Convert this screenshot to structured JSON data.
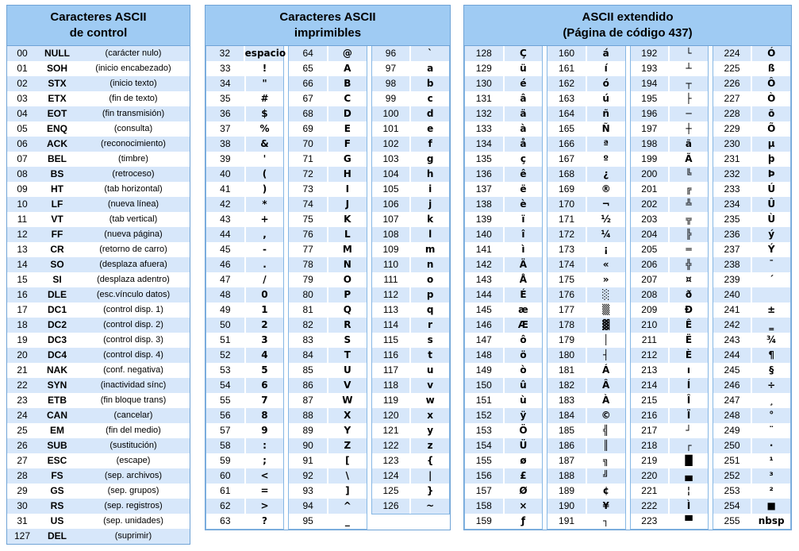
{
  "colors": {
    "header_bg": "#9FCBF3",
    "row_alt": "#D7E7FA",
    "border": "#6FA3D6",
    "subborder": "#86B7E4"
  },
  "panels": {
    "control": {
      "title_line1": "Caracteres ASCII",
      "title_line2": "de control",
      "rows": [
        {
          "d": "00",
          "c": "NULL",
          "t": "(carácter nulo)"
        },
        {
          "d": "01",
          "c": "SOH",
          "t": "(inicio encabezado)"
        },
        {
          "d": "02",
          "c": "STX",
          "t": "(inicio texto)"
        },
        {
          "d": "03",
          "c": "ETX",
          "t": "(fin de texto)"
        },
        {
          "d": "04",
          "c": "EOT",
          "t": "(fin transmisión)"
        },
        {
          "d": "05",
          "c": "ENQ",
          "t": "(consulta)"
        },
        {
          "d": "06",
          "c": "ACK",
          "t": "(reconocimiento)"
        },
        {
          "d": "07",
          "c": "BEL",
          "t": "(timbre)"
        },
        {
          "d": "08",
          "c": "BS",
          "t": "(retroceso)"
        },
        {
          "d": "09",
          "c": "HT",
          "t": "(tab horizontal)"
        },
        {
          "d": "10",
          "c": "LF",
          "t": "(nueva línea)"
        },
        {
          "d": "11",
          "c": "VT",
          "t": "(tab vertical)"
        },
        {
          "d": "12",
          "c": "FF",
          "t": "(nueva página)"
        },
        {
          "d": "13",
          "c": "CR",
          "t": "(retorno de carro)"
        },
        {
          "d": "14",
          "c": "SO",
          "t": "(desplaza afuera)"
        },
        {
          "d": "15",
          "c": "SI",
          "t": "(desplaza adentro)"
        },
        {
          "d": "16",
          "c": "DLE",
          "t": "(esc.vínculo datos)"
        },
        {
          "d": "17",
          "c": "DC1",
          "t": "(control disp. 1)"
        },
        {
          "d": "18",
          "c": "DC2",
          "t": "(control disp. 2)"
        },
        {
          "d": "19",
          "c": "DC3",
          "t": "(control disp. 3)"
        },
        {
          "d": "20",
          "c": "DC4",
          "t": "(control disp. 4)"
        },
        {
          "d": "21",
          "c": "NAK",
          "t": "(conf. negativa)"
        },
        {
          "d": "22",
          "c": "SYN",
          "t": "(inactividad sínc)"
        },
        {
          "d": "23",
          "c": "ETB",
          "t": "(fin bloque trans)"
        },
        {
          "d": "24",
          "c": "CAN",
          "t": "(cancelar)"
        },
        {
          "d": "25",
          "c": "EM",
          "t": "(fin del medio)"
        },
        {
          "d": "26",
          "c": "SUB",
          "t": "(sustitución)"
        },
        {
          "d": "27",
          "c": "ESC",
          "t": "(escape)"
        },
        {
          "d": "28",
          "c": "FS",
          "t": "(sep. archivos)"
        },
        {
          "d": "29",
          "c": "GS",
          "t": "(sep. grupos)"
        },
        {
          "d": "30",
          "c": "RS",
          "t": "(sep. registros)"
        },
        {
          "d": "31",
          "c": "US",
          "t": "(sep. unidades)"
        },
        {
          "d": "127",
          "c": "DEL",
          "t": "(suprimir)"
        }
      ]
    },
    "printable": {
      "title_line1": "Caracteres ASCII",
      "title_line2": "imprimibles",
      "columns": [
        [
          {
            "d": "32",
            "c": "espacio"
          },
          {
            "d": "33",
            "c": "!"
          },
          {
            "d": "34",
            "c": "\""
          },
          {
            "d": "35",
            "c": "#"
          },
          {
            "d": "36",
            "c": "$"
          },
          {
            "d": "37",
            "c": "%"
          },
          {
            "d": "38",
            "c": "&"
          },
          {
            "d": "39",
            "c": "'"
          },
          {
            "d": "40",
            "c": "("
          },
          {
            "d": "41",
            "c": ")"
          },
          {
            "d": "42",
            "c": "*"
          },
          {
            "d": "43",
            "c": "+"
          },
          {
            "d": "44",
            "c": ","
          },
          {
            "d": "45",
            "c": "-"
          },
          {
            "d": "46",
            "c": "."
          },
          {
            "d": "47",
            "c": "/"
          },
          {
            "d": "48",
            "c": "0"
          },
          {
            "d": "49",
            "c": "1"
          },
          {
            "d": "50",
            "c": "2"
          },
          {
            "d": "51",
            "c": "3"
          },
          {
            "d": "52",
            "c": "4"
          },
          {
            "d": "53",
            "c": "5"
          },
          {
            "d": "54",
            "c": "6"
          },
          {
            "d": "55",
            "c": "7"
          },
          {
            "d": "56",
            "c": "8"
          },
          {
            "d": "57",
            "c": "9"
          },
          {
            "d": "58",
            "c": ":"
          },
          {
            "d": "59",
            "c": ";"
          },
          {
            "d": "60",
            "c": "<"
          },
          {
            "d": "61",
            "c": "="
          },
          {
            "d": "62",
            "c": ">"
          },
          {
            "d": "63",
            "c": "?"
          }
        ],
        [
          {
            "d": "64",
            "c": "@"
          },
          {
            "d": "65",
            "c": "A"
          },
          {
            "d": "66",
            "c": "B"
          },
          {
            "d": "67",
            "c": "C"
          },
          {
            "d": "68",
            "c": "D"
          },
          {
            "d": "69",
            "c": "E"
          },
          {
            "d": "70",
            "c": "F"
          },
          {
            "d": "71",
            "c": "G"
          },
          {
            "d": "72",
            "c": "H"
          },
          {
            "d": "73",
            "c": "I"
          },
          {
            "d": "74",
            "c": "J"
          },
          {
            "d": "75",
            "c": "K"
          },
          {
            "d": "76",
            "c": "L"
          },
          {
            "d": "77",
            "c": "M"
          },
          {
            "d": "78",
            "c": "N"
          },
          {
            "d": "79",
            "c": "O"
          },
          {
            "d": "80",
            "c": "P"
          },
          {
            "d": "81",
            "c": "Q"
          },
          {
            "d": "82",
            "c": "R"
          },
          {
            "d": "83",
            "c": "S"
          },
          {
            "d": "84",
            "c": "T"
          },
          {
            "d": "85",
            "c": "U"
          },
          {
            "d": "86",
            "c": "V"
          },
          {
            "d": "87",
            "c": "W"
          },
          {
            "d": "88",
            "c": "X"
          },
          {
            "d": "89",
            "c": "Y"
          },
          {
            "d": "90",
            "c": "Z"
          },
          {
            "d": "91",
            "c": "["
          },
          {
            "d": "92",
            "c": "\\"
          },
          {
            "d": "93",
            "c": "]"
          },
          {
            "d": "94",
            "c": "^"
          },
          {
            "d": "95",
            "c": "_"
          }
        ],
        [
          {
            "d": "96",
            "c": "`"
          },
          {
            "d": "97",
            "c": "a"
          },
          {
            "d": "98",
            "c": "b"
          },
          {
            "d": "99",
            "c": "c"
          },
          {
            "d": "100",
            "c": "d"
          },
          {
            "d": "101",
            "c": "e"
          },
          {
            "d": "102",
            "c": "f"
          },
          {
            "d": "103",
            "c": "g"
          },
          {
            "d": "104",
            "c": "h"
          },
          {
            "d": "105",
            "c": "i"
          },
          {
            "d": "106",
            "c": "j"
          },
          {
            "d": "107",
            "c": "k"
          },
          {
            "d": "108",
            "c": "l"
          },
          {
            "d": "109",
            "c": "m"
          },
          {
            "d": "110",
            "c": "n"
          },
          {
            "d": "111",
            "c": "o"
          },
          {
            "d": "112",
            "c": "p"
          },
          {
            "d": "113",
            "c": "q"
          },
          {
            "d": "114",
            "c": "r"
          },
          {
            "d": "115",
            "c": "s"
          },
          {
            "d": "116",
            "c": "t"
          },
          {
            "d": "117",
            "c": "u"
          },
          {
            "d": "118",
            "c": "v"
          },
          {
            "d": "119",
            "c": "w"
          },
          {
            "d": "120",
            "c": "x"
          },
          {
            "d": "121",
            "c": "y"
          },
          {
            "d": "122",
            "c": "z"
          },
          {
            "d": "123",
            "c": "{"
          },
          {
            "d": "124",
            "c": "|"
          },
          {
            "d": "125",
            "c": "}"
          },
          {
            "d": "126",
            "c": "~"
          }
        ]
      ]
    },
    "extended": {
      "title_line1": "ASCII extendido",
      "title_line2": "(Página de código 437)",
      "columns": [
        [
          {
            "d": "128",
            "c": "Ç"
          },
          {
            "d": "129",
            "c": "ü"
          },
          {
            "d": "130",
            "c": "é"
          },
          {
            "d": "131",
            "c": "â"
          },
          {
            "d": "132",
            "c": "ä"
          },
          {
            "d": "133",
            "c": "à"
          },
          {
            "d": "134",
            "c": "å"
          },
          {
            "d": "135",
            "c": "ç"
          },
          {
            "d": "136",
            "c": "ê"
          },
          {
            "d": "137",
            "c": "ë"
          },
          {
            "d": "138",
            "c": "è"
          },
          {
            "d": "139",
            "c": "ï"
          },
          {
            "d": "140",
            "c": "î"
          },
          {
            "d": "141",
            "c": "ì"
          },
          {
            "d": "142",
            "c": "Ä"
          },
          {
            "d": "143",
            "c": "Å"
          },
          {
            "d": "144",
            "c": "É"
          },
          {
            "d": "145",
            "c": "æ"
          },
          {
            "d": "146",
            "c": "Æ"
          },
          {
            "d": "147",
            "c": "ô"
          },
          {
            "d": "148",
            "c": "ö"
          },
          {
            "d": "149",
            "c": "ò"
          },
          {
            "d": "150",
            "c": "û"
          },
          {
            "d": "151",
            "c": "ù"
          },
          {
            "d": "152",
            "c": "ÿ"
          },
          {
            "d": "153",
            "c": "Ö"
          },
          {
            "d": "154",
            "c": "Ü"
          },
          {
            "d": "155",
            "c": "ø"
          },
          {
            "d": "156",
            "c": "£"
          },
          {
            "d": "157",
            "c": "Ø"
          },
          {
            "d": "158",
            "c": "×"
          },
          {
            "d": "159",
            "c": "ƒ"
          }
        ],
        [
          {
            "d": "160",
            "c": "á"
          },
          {
            "d": "161",
            "c": "í"
          },
          {
            "d": "162",
            "c": "ó"
          },
          {
            "d": "163",
            "c": "ú"
          },
          {
            "d": "164",
            "c": "ñ"
          },
          {
            "d": "165",
            "c": "Ñ"
          },
          {
            "d": "166",
            "c": "ª"
          },
          {
            "d": "167",
            "c": "º"
          },
          {
            "d": "168",
            "c": "¿"
          },
          {
            "d": "169",
            "c": "®"
          },
          {
            "d": "170",
            "c": "¬"
          },
          {
            "d": "171",
            "c": "½"
          },
          {
            "d": "172",
            "c": "¼"
          },
          {
            "d": "173",
            "c": "¡"
          },
          {
            "d": "174",
            "c": "«"
          },
          {
            "d": "175",
            "c": "»"
          },
          {
            "d": "176",
            "c": "░"
          },
          {
            "d": "177",
            "c": "▒"
          },
          {
            "d": "178",
            "c": "▓"
          },
          {
            "d": "179",
            "c": "│"
          },
          {
            "d": "180",
            "c": "┤"
          },
          {
            "d": "181",
            "c": "Á"
          },
          {
            "d": "182",
            "c": "Â"
          },
          {
            "d": "183",
            "c": "À"
          },
          {
            "d": "184",
            "c": "©"
          },
          {
            "d": "185",
            "c": "╣"
          },
          {
            "d": "186",
            "c": "║"
          },
          {
            "d": "187",
            "c": "╗"
          },
          {
            "d": "188",
            "c": "╝"
          },
          {
            "d": "189",
            "c": "¢"
          },
          {
            "d": "190",
            "c": "¥"
          },
          {
            "d": "191",
            "c": "┐"
          }
        ],
        [
          {
            "d": "192",
            "c": "└"
          },
          {
            "d": "193",
            "c": "┴"
          },
          {
            "d": "194",
            "c": "┬"
          },
          {
            "d": "195",
            "c": "├"
          },
          {
            "d": "196",
            "c": "─"
          },
          {
            "d": "197",
            "c": "┼"
          },
          {
            "d": "198",
            "c": "ã"
          },
          {
            "d": "199",
            "c": "Ã"
          },
          {
            "d": "200",
            "c": "╚"
          },
          {
            "d": "201",
            "c": "╔"
          },
          {
            "d": "202",
            "c": "╩"
          },
          {
            "d": "203",
            "c": "╦"
          },
          {
            "d": "204",
            "c": "╠"
          },
          {
            "d": "205",
            "c": "═"
          },
          {
            "d": "206",
            "c": "╬"
          },
          {
            "d": "207",
            "c": "¤"
          },
          {
            "d": "208",
            "c": "ð"
          },
          {
            "d": "209",
            "c": "Ð"
          },
          {
            "d": "210",
            "c": "Ê"
          },
          {
            "d": "211",
            "c": "Ë"
          },
          {
            "d": "212",
            "c": "È"
          },
          {
            "d": "213",
            "c": "ı"
          },
          {
            "d": "214",
            "c": "Í"
          },
          {
            "d": "215",
            "c": "Î"
          },
          {
            "d": "216",
            "c": "Ï"
          },
          {
            "d": "217",
            "c": "┘"
          },
          {
            "d": "218",
            "c": "┌"
          },
          {
            "d": "219",
            "c": "█"
          },
          {
            "d": "220",
            "c": "▄"
          },
          {
            "d": "221",
            "c": "¦"
          },
          {
            "d": "222",
            "c": "Ì"
          },
          {
            "d": "223",
            "c": "▀"
          }
        ],
        [
          {
            "d": "224",
            "c": "Ó"
          },
          {
            "d": "225",
            "c": "ß"
          },
          {
            "d": "226",
            "c": "Ô"
          },
          {
            "d": "227",
            "c": "Ò"
          },
          {
            "d": "228",
            "c": "õ"
          },
          {
            "d": "229",
            "c": "Õ"
          },
          {
            "d": "230",
            "c": "µ"
          },
          {
            "d": "231",
            "c": "þ"
          },
          {
            "d": "232",
            "c": "Þ"
          },
          {
            "d": "233",
            "c": "Ú"
          },
          {
            "d": "234",
            "c": "Û"
          },
          {
            "d": "235",
            "c": "Ù"
          },
          {
            "d": "236",
            "c": "ý"
          },
          {
            "d": "237",
            "c": "Ý"
          },
          {
            "d": "238",
            "c": "¯"
          },
          {
            "d": "239",
            "c": "´"
          },
          {
            "d": "240",
            "c": ""
          },
          {
            "d": "241",
            "c": "±"
          },
          {
            "d": "242",
            "c": "‗"
          },
          {
            "d": "243",
            "c": "¾"
          },
          {
            "d": "244",
            "c": "¶"
          },
          {
            "d": "245",
            "c": "§"
          },
          {
            "d": "246",
            "c": "÷"
          },
          {
            "d": "247",
            "c": "¸"
          },
          {
            "d": "248",
            "c": "°"
          },
          {
            "d": "249",
            "c": "¨"
          },
          {
            "d": "250",
            "c": "·"
          },
          {
            "d": "251",
            "c": "¹"
          },
          {
            "d": "252",
            "c": "³"
          },
          {
            "d": "253",
            "c": "²"
          },
          {
            "d": "254",
            "c": "■"
          },
          {
            "d": "255",
            "c": "nbsp"
          }
        ]
      ]
    }
  }
}
